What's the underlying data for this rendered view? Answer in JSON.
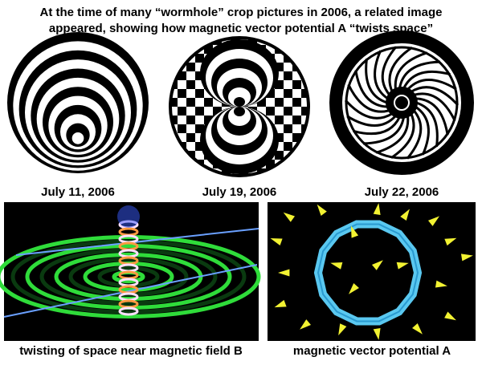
{
  "title_lines": [
    "At the time of many “wormhole” crop pictures in 2006, a related image",
    "appeared, showing how magnetic vector potential A “twists space”"
  ],
  "pictures": [
    {
      "caption": "July 11, 2006"
    },
    {
      "caption": "July 19, 2006"
    },
    {
      "caption": "July 22, 2006"
    },
    {
      "caption": "twisting of space near magnetic field B"
    },
    {
      "caption": "magnetic vector potential A"
    }
  ]
}
